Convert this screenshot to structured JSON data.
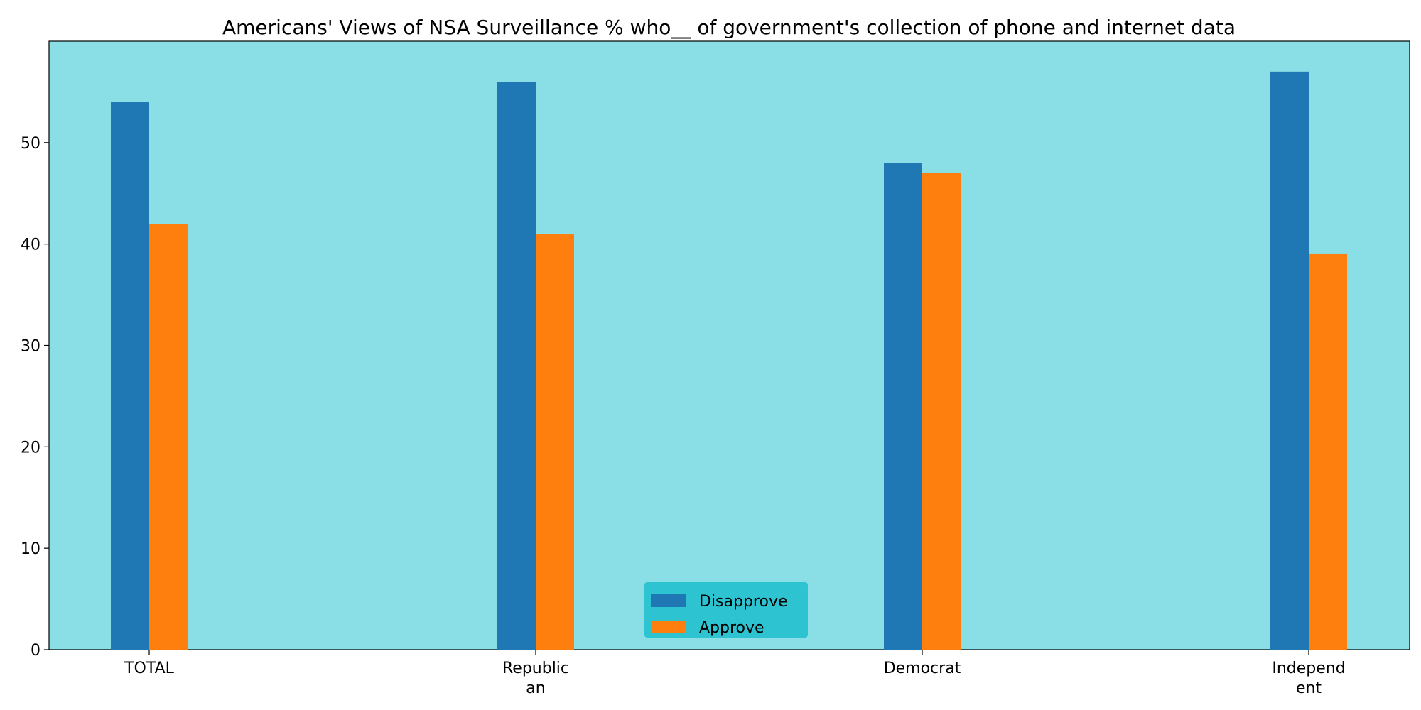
{
  "chart_data": {
    "type": "bar",
    "title": "Americans' Views of NSA Surveillance % who__ of government's collection of phone and internet data",
    "categories": [
      [
        "TOTAL"
      ],
      [
        "Republic",
        "an"
      ],
      [
        "Democrat"
      ],
      [
        "Independ",
        "ent"
      ]
    ],
    "series": [
      {
        "name": "Disapprove",
        "values": [
          54,
          56,
          48,
          57
        ],
        "color": "#1f77b4"
      },
      {
        "name": "Approve",
        "values": [
          42,
          41,
          47,
          39
        ],
        "color": "#ff7f0e"
      }
    ],
    "xlabel": "",
    "ylabel": "",
    "ylim": [
      0,
      60
    ],
    "yticks": [
      0,
      10,
      20,
      30,
      40,
      50
    ],
    "grid": false,
    "legend_position": "lower-center",
    "plot_background": "#8adfe6",
    "legend_background": "#2ec3d1"
  }
}
